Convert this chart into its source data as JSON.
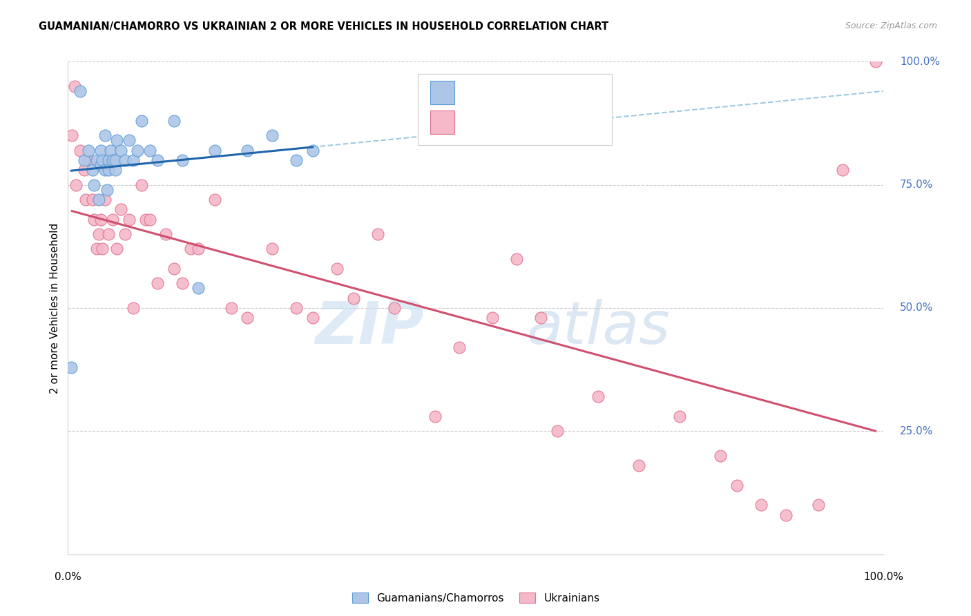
{
  "title": "GUAMANIAN/CHAMORRO VS UKRAINIAN 2 OR MORE VEHICLES IN HOUSEHOLD CORRELATION CHART",
  "source": "Source: ZipAtlas.com",
  "ylabel": "2 or more Vehicles in Household",
  "blue_fill": "#adc6e8",
  "blue_edge": "#5b9bd5",
  "pink_fill": "#f4b8c8",
  "pink_edge": "#e07090",
  "trend_blue": "#2166ac",
  "trend_pink": "#d05070",
  "dashed_color": "#9ecae1",
  "grid_color": "#cccccc",
  "right_label_color": "#4472c4",
  "legend_value_color": "#1a5ca8",
  "guamanian_x": [
    0.4,
    1.5,
    2.0,
    2.5,
    3.0,
    3.2,
    3.5,
    3.8,
    4.0,
    4.0,
    4.2,
    4.5,
    4.5,
    4.8,
    5.0,
    5.0,
    5.2,
    5.5,
    5.8,
    5.8,
    6.0,
    6.5,
    7.0,
    7.5,
    8.0,
    8.5,
    9.0,
    10.0,
    11.0,
    13.0,
    14.0,
    16.0,
    18.0,
    22.0,
    25.0,
    28.0,
    30.0
  ],
  "guamanian_y": [
    38,
    94,
    80,
    82,
    78,
    75,
    80,
    72,
    79,
    82,
    80,
    78,
    85,
    74,
    80,
    78,
    82,
    80,
    78,
    80,
    84,
    82,
    80,
    84,
    80,
    82,
    88,
    82,
    80,
    88,
    80,
    54,
    82,
    82,
    85,
    80,
    82
  ],
  "ukrainian_x": [
    0.5,
    0.8,
    1.0,
    1.5,
    2.0,
    2.2,
    2.5,
    3.0,
    3.2,
    3.5,
    3.8,
    4.0,
    4.2,
    4.5,
    5.0,
    5.5,
    6.0,
    6.5,
    7.0,
    7.5,
    8.0,
    9.0,
    9.5,
    10.0,
    11.0,
    12.0,
    13.0,
    14.0,
    15.0,
    16.0,
    18.0,
    20.0,
    22.0,
    25.0,
    28.0,
    30.0,
    33.0,
    35.0,
    38.0,
    40.0,
    45.0,
    48.0,
    52.0,
    55.0,
    58.0,
    60.0,
    65.0,
    70.0,
    75.0,
    80.0,
    82.0,
    85.0,
    88.0,
    92.0,
    95.0,
    99.0
  ],
  "ukrainian_y": [
    85,
    95,
    75,
    82,
    78,
    72,
    80,
    72,
    68,
    62,
    65,
    68,
    62,
    72,
    65,
    68,
    62,
    70,
    65,
    68,
    50,
    75,
    68,
    68,
    55,
    65,
    58,
    55,
    62,
    62,
    72,
    50,
    48,
    62,
    50,
    48,
    58,
    52,
    65,
    50,
    28,
    42,
    48,
    60,
    48,
    25,
    32,
    18,
    28,
    20,
    14,
    10,
    8,
    10,
    78,
    100
  ]
}
